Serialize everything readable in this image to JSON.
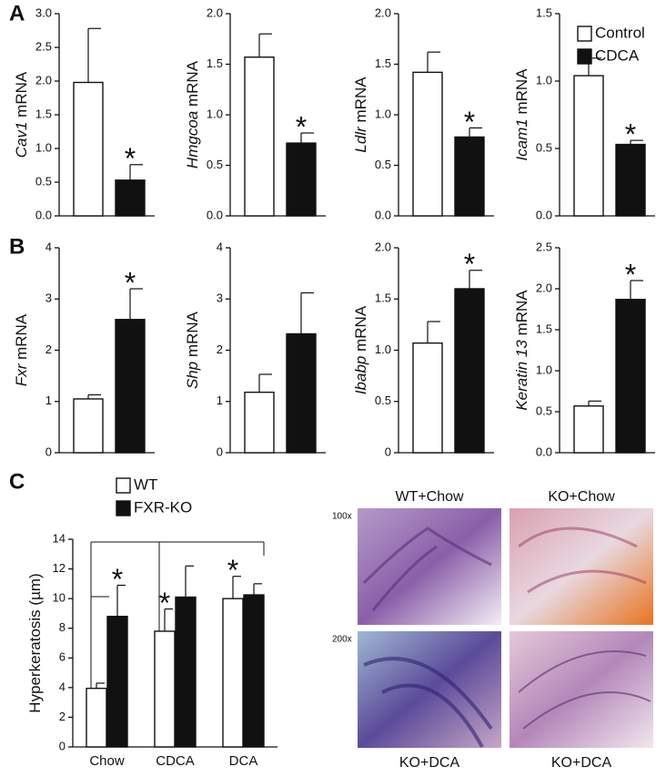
{
  "panel_labels": [
    "A",
    "B",
    "C"
  ],
  "micrographs": {
    "titles": [
      "WT+Chow",
      "KO+Chow",
      "KO+DCA",
      "KO+DCA"
    ],
    "magnifications": [
      "100x",
      "200x"
    ]
  },
  "chart_data": [
    {
      "type": "bar",
      "ylabel_italic": "Cav1",
      "ylabel": "mRNA",
      "ylim": [
        0,
        3
      ],
      "yticks": [
        {
          "value": 0,
          "label": "0.0"
        },
        0.5,
        {
          "value": 1,
          "label": "1.0"
        },
        1.5,
        {
          "value": 2,
          "label": "2.0"
        },
        2.5,
        {
          "value": 3,
          "label": "3.0"
        }
      ],
      "series": [
        {
          "name": "Control",
          "color": "#ffffff",
          "values": [
            1.98
          ],
          "errors": [
            0.8
          ],
          "labels": [
            null
          ]
        },
        {
          "name": "CDCA",
          "color": "#111111",
          "values": [
            0.53
          ],
          "errors": [
            0.23
          ],
          "labels": [
            "*"
          ]
        }
      ]
    },
    {
      "type": "bar",
      "ylabel_italic": "Hmgcoa",
      "ylabel": "mRNA",
      "ylim": [
        0,
        2
      ],
      "yticks": [
        {
          "value": 0,
          "label": "0.0"
        },
        0.5,
        {
          "value": 1,
          "label": "1.0"
        },
        1.5,
        {
          "value": 2,
          "label": "2.0"
        }
      ],
      "series": [
        {
          "color": "#ffffff",
          "values": [
            1.57
          ],
          "errors": [
            0.23
          ],
          "labels": [
            null
          ]
        },
        {
          "color": "#111111",
          "values": [
            0.72
          ],
          "errors": [
            0.1
          ],
          "labels": [
            "*"
          ]
        }
      ]
    },
    {
      "type": "bar",
      "ylabel_italic": "Ldlr",
      "ylabel": "mRNA",
      "ylim": [
        0,
        2
      ],
      "yticks": [
        {
          "value": 0,
          "label": "0.0"
        },
        0.5,
        {
          "value": 1,
          "label": "1.0"
        },
        1.5,
        {
          "value": 2,
          "label": "2.0"
        }
      ],
      "series": [
        {
          "color": "#ffffff",
          "values": [
            1.42
          ],
          "errors": [
            0.2
          ],
          "labels": [
            null
          ]
        },
        {
          "color": "#111111",
          "values": [
            0.78
          ],
          "errors": [
            0.09
          ],
          "labels": [
            "*"
          ]
        }
      ]
    },
    {
      "type": "bar",
      "ylabel_italic": "Icam1",
      "ylabel": "mRNA",
      "ylim": [
        0,
        1.5
      ],
      "yticks": [
        {
          "value": 0,
          "label": "0.0"
        },
        0.5,
        {
          "value": 1,
          "label": "1.0"
        },
        1.5
      ],
      "series": [
        {
          "color": "#ffffff",
          "values": [
            1.04
          ],
          "errors": [
            0.13
          ],
          "labels": [
            null
          ]
        },
        {
          "color": "#111111",
          "values": [
            0.53
          ],
          "errors": [
            0.03
          ],
          "labels": [
            "*"
          ]
        }
      ]
    },
    {
      "type": "bar",
      "ylabel_italic": "Fxr",
      "ylabel": "mRNA",
      "ylim": [
        0,
        4
      ],
      "yticks": [
        0,
        1,
        2,
        3,
        4
      ],
      "series": [
        {
          "color": "#ffffff",
          "values": [
            1.05
          ],
          "errors": [
            0.08
          ],
          "labels": [
            null
          ]
        },
        {
          "color": "#111111",
          "values": [
            2.6
          ],
          "errors": [
            0.6
          ],
          "labels": [
            "*"
          ]
        }
      ]
    },
    {
      "type": "bar",
      "ylabel_italic": "Shp",
      "ylabel": "mRNA",
      "ylim": [
        0,
        4
      ],
      "yticks": [
        0,
        1,
        2,
        3,
        4
      ],
      "series": [
        {
          "color": "#ffffff",
          "values": [
            1.18
          ],
          "errors": [
            0.35
          ],
          "labels": [
            null
          ]
        },
        {
          "color": "#111111",
          "values": [
            2.32
          ],
          "errors": [
            0.8
          ],
          "labels": [
            null
          ]
        }
      ]
    },
    {
      "type": "bar",
      "ylabel_italic": "Ibabp",
      "ylabel": "mRNA",
      "ylim": [
        0,
        2
      ],
      "yticks": [
        0,
        0.5,
        {
          "value": 1,
          "label": "1.0"
        },
        1.5,
        {
          "value": 2,
          "label": "2.0"
        }
      ],
      "series": [
        {
          "color": "#ffffff",
          "values": [
            1.07
          ],
          "errors": [
            0.21
          ],
          "labels": [
            null
          ]
        },
        {
          "color": "#111111",
          "values": [
            1.6
          ],
          "errors": [
            0.18
          ],
          "labels": [
            "*"
          ]
        }
      ]
    },
    {
      "type": "bar",
      "ylabel_italic": "Keratin 13",
      "ylabel": "mRNA",
      "ylim": [
        0,
        2.5
      ],
      "yticks": [
        {
          "value": 0,
          "label": "0.0"
        },
        0.5,
        {
          "value": 1,
          "label": "1.0"
        },
        1.5,
        {
          "value": 2,
          "label": "2.0"
        },
        2.5
      ],
      "series": [
        {
          "color": "#ffffff",
          "values": [
            0.57
          ],
          "errors": [
            0.06
          ],
          "labels": [
            null
          ]
        },
        {
          "color": "#111111",
          "values": [
            1.87
          ],
          "errors": [
            0.23
          ],
          "labels": [
            "*"
          ]
        }
      ]
    },
    {
      "type": "bar",
      "ylabel": "Hyperkeratosis (µm)",
      "ylim": [
        0,
        14
      ],
      "yticks": [
        0,
        2,
        4,
        6,
        8,
        10,
        12,
        14
      ],
      "categories": [
        "Chow",
        "CDCA",
        "DCA"
      ],
      "series": [
        {
          "name": "WT",
          "color": "#ffffff",
          "values": [
            3.95,
            7.8,
            10.0
          ],
          "errors": [
            0.35,
            1.5,
            1.5
          ],
          "labels": [
            null,
            "*",
            "*"
          ]
        },
        {
          "name": "FXR-KO",
          "color": "#111111",
          "values": [
            8.8,
            10.1,
            10.25
          ],
          "errors": [
            2.1,
            2.1,
            0.75
          ],
          "labels": [
            "*",
            null,
            null
          ]
        }
      ]
    }
  ]
}
